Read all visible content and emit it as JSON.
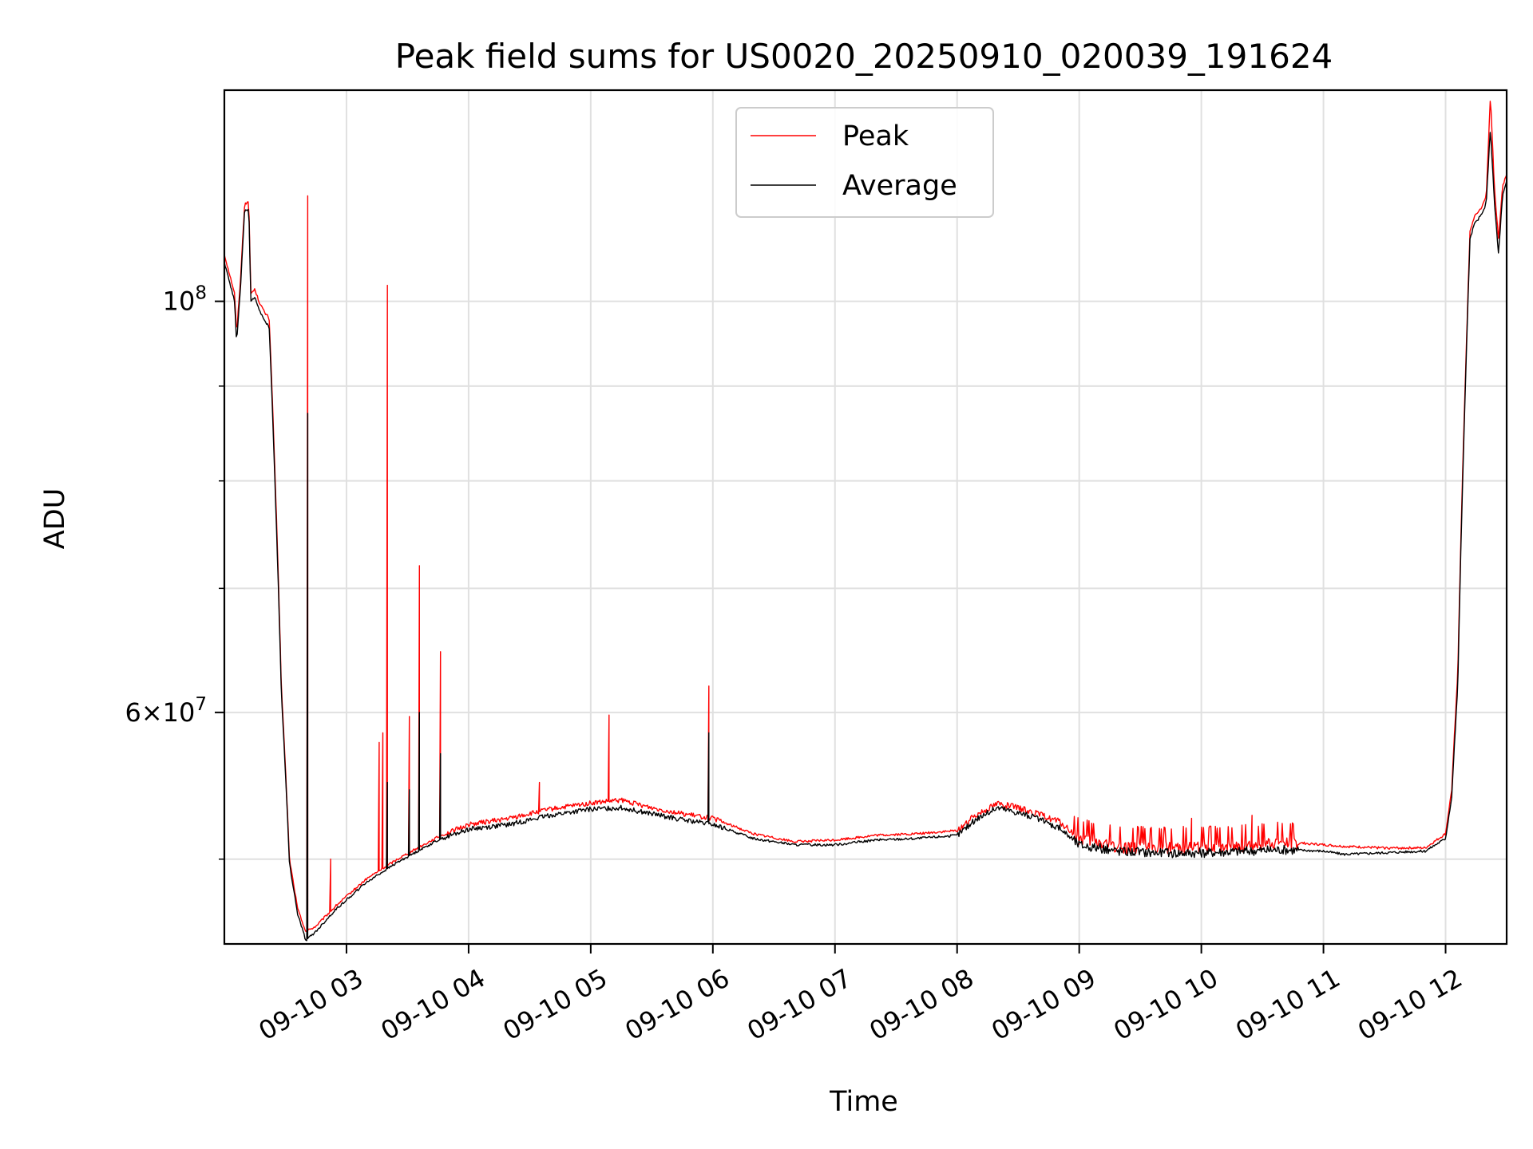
{
  "chart_data": {
    "type": "line",
    "title": "Peak field sums for US0020_20250910_020039_191624",
    "xlabel": "Time",
    "ylabel": "ADU",
    "x_unit": "time of day (2025-09-10, hours)",
    "x_range": [
      "02:00",
      "12:30"
    ],
    "ylim": [
      45000000,
      130000000
    ],
    "y_scale": "log",
    "y_major_ticks": [
      {
        "value": 100000000,
        "label_base": "10",
        "label_exp": "8"
      },
      {
        "value": 60000000,
        "label_base": "6×10",
        "label_exp": "7"
      }
    ],
    "y_minor_ticks": [
      50000000,
      70000000,
      80000000,
      90000000
    ],
    "x_ticks": [
      {
        "time": "03:00",
        "label": "09-10 03"
      },
      {
        "time": "04:00",
        "label": "09-10 04"
      },
      {
        "time": "05:00",
        "label": "09-10 05"
      },
      {
        "time": "06:00",
        "label": "09-10 06"
      },
      {
        "time": "07:00",
        "label": "09-10 07"
      },
      {
        "time": "08:00",
        "label": "09-10 08"
      },
      {
        "time": "09:00",
        "label": "09-10 09"
      },
      {
        "time": "10:00",
        "label": "09-10 10"
      },
      {
        "time": "11:00",
        "label": "09-10 11"
      },
      {
        "time": "12:00",
        "label": "09-10 12"
      }
    ],
    "grid": true,
    "legend_position": "top-center",
    "series": [
      {
        "name": "Peak",
        "color": "#ff0000",
        "points": [
          [
            "02:00",
            106000000
          ],
          [
            "02:05",
            101000000
          ],
          [
            "02:06",
            96000000
          ],
          [
            "02:08",
            103000000
          ],
          [
            "02:10",
            113000000
          ],
          [
            "02:12",
            113000000
          ],
          [
            "02:13",
            101000000
          ],
          [
            "02:15",
            101500000
          ],
          [
            "02:17",
            100000000
          ],
          [
            "02:20",
            98500000
          ],
          [
            "02:22",
            98000000
          ],
          [
            "02:25",
            80000000
          ],
          [
            "02:28",
            62000000
          ],
          [
            "02:32",
            50000000
          ],
          [
            "02:36",
            47000000
          ],
          [
            "02:40",
            45700000
          ],
          [
            "02:45",
            46000000
          ],
          [
            "02:55",
            47200000
          ],
          [
            "03:10",
            48800000
          ],
          [
            "03:25",
            50000000
          ],
          [
            "03:45",
            51400000
          ],
          [
            "04:00",
            52200000
          ],
          [
            "04:20",
            52600000
          ],
          [
            "04:40",
            53200000
          ],
          [
            "05:00",
            53600000
          ],
          [
            "05:15",
            53800000
          ],
          [
            "05:30",
            53300000
          ],
          [
            "05:45",
            52900000
          ],
          [
            "06:00",
            52600000
          ],
          [
            "06:20",
            51600000
          ],
          [
            "06:40",
            51100000
          ],
          [
            "07:00",
            51200000
          ],
          [
            "07:20",
            51500000
          ],
          [
            "07:40",
            51600000
          ],
          [
            "08:00",
            51800000
          ],
          [
            "08:10",
            52900000
          ],
          [
            "08:20",
            53600000
          ],
          [
            "08:35",
            53100000
          ],
          [
            "08:50",
            52400000
          ],
          [
            "09:00",
            51300000
          ],
          [
            "09:20",
            50800000
          ],
          [
            "09:40",
            50800000
          ],
          [
            "10:00",
            50800000
          ],
          [
            "10:20",
            50900000
          ],
          [
            "10:40",
            51100000
          ],
          [
            "11:00",
            50900000
          ],
          [
            "11:10",
            50800000
          ],
          [
            "11:30",
            50700000
          ],
          [
            "11:50",
            50700000
          ],
          [
            "12:00",
            51600000
          ],
          [
            "12:03",
            54500000
          ],
          [
            "12:06",
            63000000
          ],
          [
            "12:10",
            93000000
          ],
          [
            "12:12",
            109000000
          ],
          [
            "12:14",
            111000000
          ],
          [
            "12:18",
            112500000
          ],
          [
            "12:20",
            114000000
          ],
          [
            "12:22",
            129000000
          ],
          [
            "12:24",
            115000000
          ],
          [
            "12:26",
            108000000
          ],
          [
            "12:28",
            115500000
          ],
          [
            "12:30",
            117000000
          ]
        ],
        "spikes": [
          [
            "02:41",
            114000000
          ],
          [
            "02:52",
            50000000
          ],
          [
            "03:16",
            57800000
          ],
          [
            "03:18",
            58500000
          ],
          [
            "03:20",
            102000000
          ],
          [
            "03:31",
            59700000
          ],
          [
            "03:36",
            72000000
          ],
          [
            "03:46",
            64700000
          ],
          [
            "04:35",
            55000000
          ],
          [
            "05:09",
            59800000
          ],
          [
            "05:58",
            62000000
          ],
          [
            "09:55",
            52600000
          ],
          [
            "10:25",
            52800000
          ]
        ]
      },
      {
        "name": "Average",
        "color": "#000000",
        "points": [
          [
            "02:00",
            105000000
          ],
          [
            "02:05",
            100000000
          ],
          [
            "02:06",
            95000000
          ],
          [
            "02:08",
            102000000
          ],
          [
            "02:10",
            112000000
          ],
          [
            "02:12",
            112000000
          ],
          [
            "02:13",
            100000000
          ],
          [
            "02:15",
            100500000
          ],
          [
            "02:17",
            99000000
          ],
          [
            "02:20",
            97500000
          ],
          [
            "02:22",
            97000000
          ],
          [
            "02:25",
            79000000
          ],
          [
            "02:28",
            61500000
          ],
          [
            "02:32",
            49700000
          ],
          [
            "02:36",
            46700000
          ],
          [
            "02:40",
            45200000
          ],
          [
            "02:45",
            45700000
          ],
          [
            "02:55",
            47000000
          ],
          [
            "03:10",
            48600000
          ],
          [
            "03:25",
            49800000
          ],
          [
            "03:45",
            51200000
          ],
          [
            "04:00",
            51900000
          ],
          [
            "04:20",
            52200000
          ],
          [
            "04:40",
            52800000
          ],
          [
            "05:00",
            53200000
          ],
          [
            "05:15",
            53300000
          ],
          [
            "05:30",
            52900000
          ],
          [
            "05:45",
            52500000
          ],
          [
            "06:00",
            52200000
          ],
          [
            "06:20",
            51300000
          ],
          [
            "06:40",
            50900000
          ],
          [
            "07:00",
            50900000
          ],
          [
            "07:20",
            51200000
          ],
          [
            "07:40",
            51300000
          ],
          [
            "08:00",
            51500000
          ],
          [
            "08:10",
            52600000
          ],
          [
            "08:20",
            53300000
          ],
          [
            "08:35",
            52800000
          ],
          [
            "08:50",
            52000000
          ],
          [
            "09:00",
            50900000
          ],
          [
            "09:20",
            50500000
          ],
          [
            "09:40",
            50400000
          ],
          [
            "10:00",
            50400000
          ],
          [
            "10:20",
            50500000
          ],
          [
            "10:40",
            50600000
          ],
          [
            "11:00",
            50500000
          ],
          [
            "11:10",
            50300000
          ],
          [
            "11:30",
            50400000
          ],
          [
            "11:50",
            50500000
          ],
          [
            "12:00",
            51300000
          ],
          [
            "12:03",
            54000000
          ],
          [
            "12:06",
            62000000
          ],
          [
            "12:10",
            92000000
          ],
          [
            "12:12",
            108000000
          ],
          [
            "12:14",
            110000000
          ],
          [
            "12:18",
            111500000
          ],
          [
            "12:20",
            113000000
          ],
          [
            "12:22",
            124000000
          ],
          [
            "12:24",
            113000000
          ],
          [
            "12:26",
            106000000
          ],
          [
            "12:28",
            114000000
          ],
          [
            "12:30",
            116000000
          ]
        ],
        "spikes": [
          [
            "02:41",
            87000000
          ],
          [
            "03:20",
            55000000
          ],
          [
            "03:31",
            54500000
          ],
          [
            "03:36",
            60000000
          ],
          [
            "03:46",
            57000000
          ],
          [
            "05:58",
            58500000
          ]
        ]
      }
    ]
  }
}
